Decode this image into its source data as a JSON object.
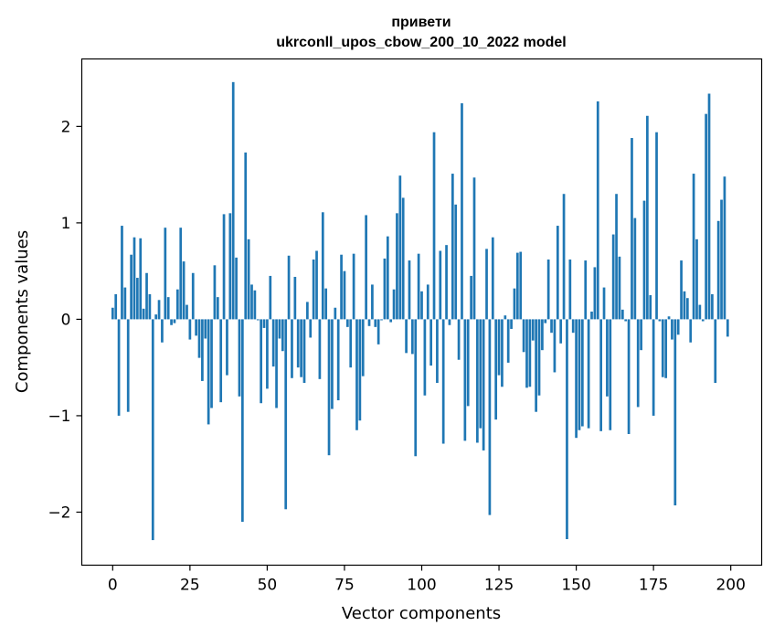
{
  "chart_data": {
    "type": "bar",
    "title": "привети\nukrconll_upos_cbow_200_10_2022 model",
    "title_lines": [
      "привети",
      "ukrconll_upos_cbow_200_10_2022 model"
    ],
    "xlabel": "Vector components",
    "ylabel": "Components values",
    "xlim": [
      -10,
      210
    ],
    "ylim": [
      -2.55,
      2.7
    ],
    "xticks": [
      0,
      25,
      50,
      75,
      100,
      125,
      150,
      175,
      200
    ],
    "xtick_labels": [
      "0",
      "25",
      "50",
      "75",
      "100",
      "125",
      "150",
      "175",
      "200"
    ],
    "yticks": [
      -2,
      -1,
      0,
      1,
      2
    ],
    "ytick_labels": [
      "−2",
      "−1",
      "0",
      "1",
      "2"
    ],
    "grid": false,
    "bar_color": "#1f77b4",
    "x": [
      0,
      1,
      2,
      3,
      4,
      5,
      6,
      7,
      8,
      9,
      10,
      11,
      12,
      13,
      14,
      15,
      16,
      17,
      18,
      19,
      20,
      21,
      22,
      23,
      24,
      25,
      26,
      27,
      28,
      29,
      30,
      31,
      32,
      33,
      34,
      35,
      36,
      37,
      38,
      39,
      40,
      41,
      42,
      43,
      44,
      45,
      46,
      47,
      48,
      49,
      50,
      51,
      52,
      53,
      54,
      55,
      56,
      57,
      58,
      59,
      60,
      61,
      62,
      63,
      64,
      65,
      66,
      67,
      68,
      69,
      70,
      71,
      72,
      73,
      74,
      75,
      76,
      77,
      78,
      79,
      80,
      81,
      82,
      83,
      84,
      85,
      86,
      87,
      88,
      89,
      90,
      91,
      92,
      93,
      94,
      95,
      96,
      97,
      98,
      99,
      100,
      101,
      102,
      103,
      104,
      105,
      106,
      107,
      108,
      109,
      110,
      111,
      112,
      113,
      114,
      115,
      116,
      117,
      118,
      119,
      120,
      121,
      122,
      123,
      124,
      125,
      126,
      127,
      128,
      129,
      130,
      131,
      132,
      133,
      134,
      135,
      136,
      137,
      138,
      139,
      140,
      141,
      142,
      143,
      144,
      145,
      146,
      147,
      148,
      149,
      150,
      151,
      152,
      153,
      154,
      155,
      156,
      157,
      158,
      159,
      160,
      161,
      162,
      163,
      164,
      165,
      166,
      167,
      168,
      169,
      170,
      171,
      172,
      173,
      174,
      175,
      176,
      177,
      178,
      179,
      180,
      181,
      182,
      183,
      184,
      185,
      186,
      187,
      188,
      189,
      190,
      191,
      192,
      193,
      194,
      195,
      196,
      197,
      198,
      199
    ],
    "values": [
      0.12,
      0.26,
      -1.0,
      0.97,
      0.33,
      -0.96,
      0.67,
      0.85,
      0.43,
      0.84,
      0.11,
      0.48,
      0.26,
      -2.29,
      0.05,
      0.2,
      -0.24,
      0.95,
      0.23,
      -0.06,
      -0.04,
      0.31,
      0.95,
      0.6,
      0.15,
      -0.21,
      0.48,
      -0.17,
      -0.4,
      -0.64,
      -0.2,
      -1.09,
      -0.92,
      0.56,
      0.23,
      -0.86,
      1.09,
      -0.58,
      1.1,
      2.46,
      0.64,
      -0.8,
      -2.1,
      1.73,
      0.83,
      0.36,
      0.3,
      -0.01,
      -0.87,
      -0.09,
      -0.72,
      0.45,
      -0.49,
      -0.92,
      -0.2,
      -0.33,
      -1.97,
      0.66,
      -0.61,
      0.44,
      -0.5,
      -0.6,
      -0.66,
      0.18,
      -0.19,
      0.62,
      0.71,
      -0.62,
      1.11,
      0.32,
      -1.41,
      -0.93,
      0.12,
      -0.84,
      0.67,
      0.5,
      -0.08,
      -0.5,
      0.68,
      -1.15,
      -1.05,
      -0.59,
      1.08,
      -0.07,
      0.36,
      -0.08,
      -0.26,
      -0.01,
      0.63,
      0.86,
      -0.03,
      0.31,
      1.1,
      1.49,
      1.26,
      -0.35,
      0.61,
      -0.36,
      -1.42,
      0.68,
      0.29,
      -0.79,
      0.36,
      -0.48,
      1.94,
      -0.66,
      0.71,
      -1.29,
      0.77,
      -0.06,
      1.51,
      1.19,
      -0.42,
      2.24,
      -1.26,
      -0.9,
      0.45,
      1.47,
      -1.28,
      -1.13,
      -1.36,
      0.73,
      -2.03,
      0.85,
      -1.04,
      -0.58,
      -0.7,
      0.04,
      -0.45,
      -0.1,
      0.32,
      0.69,
      0.7,
      -0.34,
      -0.71,
      -0.7,
      -0.22,
      -0.96,
      -0.79,
      -0.32,
      -0.04,
      0.62,
      -0.14,
      -0.55,
      0.97,
      -0.25,
      1.3,
      -2.28,
      0.62,
      -0.14,
      -1.23,
      -1.15,
      -1.11,
      0.61,
      -1.13,
      0.08,
      0.54,
      2.26,
      -1.16,
      0.33,
      -0.8,
      -1.15,
      0.88,
      1.3,
      0.65,
      0.1,
      -0.02,
      -1.19,
      1.88,
      1.05,
      -0.91,
      -0.32,
      1.23,
      2.11,
      0.25,
      -1.0,
      1.94,
      -0.02,
      -0.6,
      -0.61,
      0.03,
      -0.21,
      -1.93,
      -0.16,
      0.61,
      0.29,
      0.22,
      -0.24,
      1.51,
      0.83,
      0.15,
      -0.02,
      2.13,
      2.34,
      0.26,
      -0.66,
      1.02,
      1.24,
      1.48,
      -0.18
    ]
  }
}
